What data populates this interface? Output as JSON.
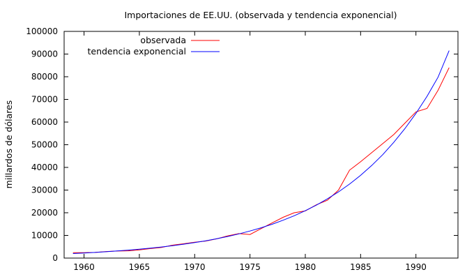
{
  "chart_data": {
    "type": "line",
    "title": "Importaciones de EE.UU. (observada y tendencia exponencial)",
    "xlabel": "",
    "ylabel": "millardos de dólares",
    "xlim": [
      1958.2,
      1993.8
    ],
    "ylim": [
      0,
      100000
    ],
    "xticks": [
      1960,
      1965,
      1970,
      1975,
      1980,
      1985,
      1990
    ],
    "yticks": [
      0,
      10000,
      20000,
      30000,
      40000,
      50000,
      60000,
      70000,
      80000,
      90000,
      100000
    ],
    "grid": false,
    "legend_position": "top-left",
    "series": [
      {
        "name": "observada",
        "color": "#ff0000",
        "x": [
          1959,
          1960,
          1961,
          1962,
          1963,
          1964,
          1965,
          1966,
          1967,
          1968,
          1969,
          1970,
          1971,
          1972,
          1973,
          1974,
          1975,
          1976,
          1977,
          1978,
          1979,
          1980,
          1981,
          1982,
          1983,
          1984,
          1985,
          1986,
          1987,
          1988,
          1989,
          1990,
          1991,
          1992,
          1993
        ],
        "values": [
          2400,
          2400,
          2500,
          2900,
          3100,
          3200,
          3600,
          4200,
          4700,
          5700,
          6300,
          7000,
          7500,
          8500,
          9800,
          10800,
          10400,
          13000,
          15500,
          18000,
          20000,
          20800,
          23500,
          25500,
          30000,
          38800,
          42500,
          46500,
          50500,
          54500,
          59500,
          64500,
          66000,
          74000,
          84000
        ]
      },
      {
        "name": "tendencia exponencial",
        "color": "#0000ff",
        "x": [
          1959,
          1960,
          1961,
          1962,
          1963,
          1964,
          1965,
          1966,
          1967,
          1968,
          1969,
          1970,
          1971,
          1972,
          1973,
          1974,
          1975,
          1976,
          1977,
          1978,
          1979,
          1980,
          1981,
          1982,
          1983,
          1984,
          1985,
          1986,
          1987,
          1988,
          1989,
          1990,
          1991,
          1992,
          1993
        ],
        "values": [
          2000,
          2240,
          2500,
          2800,
          3130,
          3500,
          3910,
          4370,
          4890,
          5470,
          6110,
          6830,
          7640,
          8540,
          9550,
          10680,
          11940,
          13350,
          14930,
          16700,
          18670,
          20880,
          23350,
          26110,
          29190,
          32640,
          36500,
          40820,
          45640,
          51040,
          57070,
          63810,
          71360,
          79790,
          91500
        ]
      }
    ]
  }
}
